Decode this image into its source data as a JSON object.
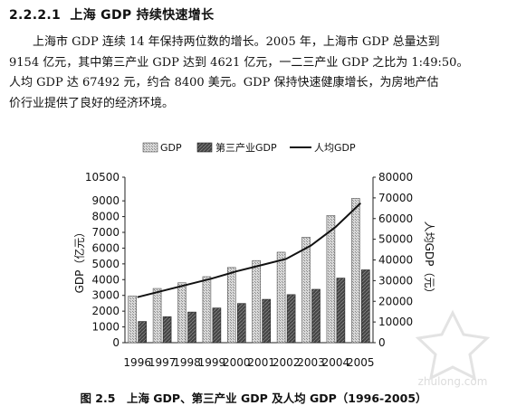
{
  "section": {
    "number": "2.2.2.1",
    "title": "上海 GDP 持续快速增长"
  },
  "paragraph": [
    "上海市 GDP 连续 14 年保持两位数的增长。2005 年，上海市 GDP 总量达到",
    "9154 亿元，其中第三产业 GDP 达到 4621 亿元，一二三产业 GDP 之比为 1:49:50。",
    "人均 GDP 达 67492 元，约合 8400 美元。GDP 保持快速健康增长，为房地产估",
    "价行业提供了良好的经济环境。"
  ],
  "chart_data": {
    "type": "bar",
    "categories": [
      "1996",
      "1997",
      "1998",
      "1999",
      "2000",
      "2001",
      "2002",
      "2003",
      "2004",
      "2005"
    ],
    "series": [
      {
        "name": "GDP",
        "type": "bar",
        "axis": "left",
        "values": [
          2958,
          3439,
          3801,
          4188,
          4771,
          5210,
          5741,
          6694,
          8072,
          9154
        ]
      },
      {
        "name": "第三产业GDP",
        "type": "bar",
        "axis": "left",
        "values": [
          1345,
          1648,
          1944,
          2200,
          2486,
          2750,
          3050,
          3386,
          4098,
          4621
        ]
      },
      {
        "name": "人均GDP",
        "type": "line",
        "axis": "right",
        "values": [
          22000,
          25000,
          28000,
          31000,
          34500,
          37500,
          40500,
          47000,
          56000,
          67492
        ]
      }
    ],
    "ylabel": "GDP（亿元）",
    "ylabel_right": "人均GDP（元）",
    "ylim": [
      0,
      10500
    ],
    "y_ticks": [
      "0",
      "1000",
      "2000",
      "3000",
      "4000",
      "5000",
      "6000",
      "7000",
      "8000",
      "9000",
      "10500"
    ],
    "ylim_right": [
      0,
      80000
    ],
    "y_right_ticks": [
      "0",
      "10000",
      "20000",
      "30000",
      "40000",
      "50000",
      "60000",
      "70000",
      "80000"
    ],
    "legend_position": "top",
    "grid": false,
    "colors": {
      "gdp_bar": "#c9c9c9",
      "tertiary_bar": "#555555",
      "line": "#111111"
    }
  },
  "caption": "图 2.5　上海 GDP、第三产业 GDP 及人均 GDP（1996-2005）",
  "watermark": "zhulong.com"
}
